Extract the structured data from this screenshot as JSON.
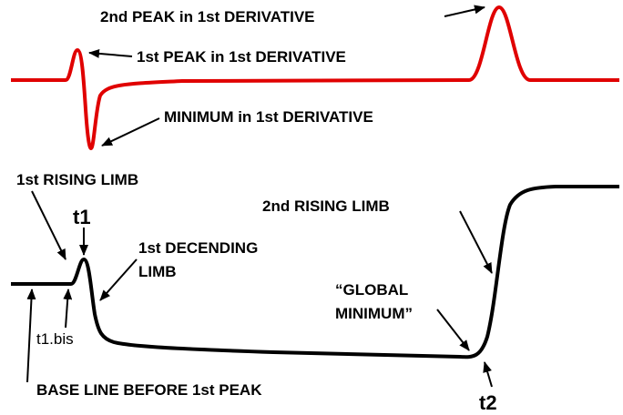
{
  "labels": {
    "second_peak": "2nd PEAK in 1st DERIVATIVE",
    "first_peak": "1st PEAK in 1st DERIVATIVE",
    "minimum": "MINIMUM in 1st DERIVATIVE",
    "first_rising_limb": "1st RISING LIMB",
    "t1": "t1",
    "first_descending_limb": [
      "1st DECENDING",
      "LIMB"
    ],
    "second_rising_limb": "2nd RISING LIMB",
    "global_minimum": [
      "“GLOBAL",
      "MINIMUM”"
    ],
    "t1_bis": "t1.bis",
    "baseline": "BASE LINE BEFORE 1st PEAK",
    "t2": "t2"
  }
}
